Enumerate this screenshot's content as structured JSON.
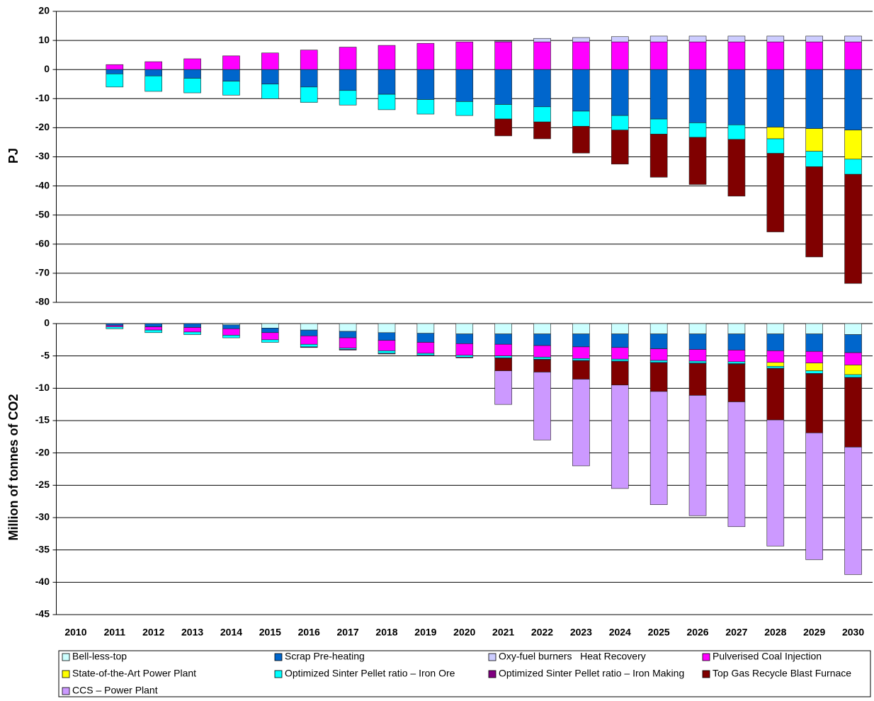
{
  "chart_data": [
    {
      "type": "bar",
      "y_label": "PJ",
      "ylim": [
        -80,
        20
      ],
      "yticks": [
        20,
        10,
        0,
        -10,
        -20,
        -30,
        -40,
        -50,
        -60,
        -70,
        -80
      ],
      "grid": true,
      "series": [
        {
          "color": "#ff00ff",
          "values": [
            null,
            1.7,
            2.7,
            3.7,
            4.7,
            5.7,
            6.7,
            7.7,
            8.3,
            9,
            9.5,
            9.5,
            9.5,
            9.5,
            9.5,
            9.5,
            9.5,
            9.5,
            9.5,
            9.5,
            9.5
          ]
        },
        {
          "color": "#ccccff",
          "values": [
            null,
            null,
            null,
            null,
            null,
            null,
            null,
            null,
            null,
            null,
            null,
            0.3,
            1.2,
            1.5,
            1.8,
            2,
            2,
            2,
            2,
            2,
            2
          ]
        },
        {
          "color": "#0066cc",
          "values": [
            null,
            -1.5,
            -2.2,
            -3,
            -4,
            -5,
            -6,
            -7.2,
            -8.5,
            -10.3,
            -11,
            -12,
            -12.8,
            -14.3,
            -15.8,
            -17,
            -18.3,
            -19,
            -19.8,
            -20.3,
            -20.8
          ]
        },
        {
          "color": "#ffff00",
          "values": [
            null,
            null,
            null,
            null,
            null,
            null,
            null,
            null,
            null,
            null,
            null,
            null,
            null,
            null,
            null,
            null,
            null,
            null,
            -4,
            -7.8,
            -10
          ]
        },
        {
          "color": "#00ffff",
          "values": [
            null,
            -4.5,
            -5.3,
            -5,
            -4.8,
            -5,
            -5.3,
            -5,
            -5.3,
            -5,
            -4.8,
            -5,
            -5.2,
            -5.2,
            -5,
            -5.2,
            -5,
            -5,
            -5,
            -5.3,
            -5.2
          ]
        },
        {
          "color": "#800000",
          "values": [
            null,
            null,
            null,
            null,
            null,
            null,
            null,
            null,
            null,
            null,
            null,
            -5.8,
            -5.8,
            -9.2,
            -11.7,
            -14.8,
            -16.2,
            -19.5,
            -27,
            -31,
            -37.5
          ]
        }
      ]
    },
    {
      "type": "bar",
      "y_label": "Million of tonnes of CO2",
      "ylim": [
        -45,
        0
      ],
      "yticks": [
        0,
        -5,
        -10,
        -15,
        -20,
        -25,
        -30,
        -35,
        -40,
        -45
      ],
      "grid": true,
      "categories": [
        "2010",
        "2011",
        "2012",
        "2013",
        "2014",
        "2015",
        "2016",
        "2017",
        "2018",
        "2019",
        "2020",
        "2021",
        "2022",
        "2023",
        "2024",
        "2025",
        "2026",
        "2027",
        "2028",
        "2029",
        "2030"
      ],
      "series": [
        {
          "name": "Bell-less-top",
          "color": "#ccffff",
          "values": [
            null,
            null,
            null,
            null,
            -0.2,
            -0.7,
            -1,
            -1.2,
            -1.4,
            -1.5,
            -1.6,
            -1.6,
            -1.6,
            -1.6,
            -1.6,
            -1.6,
            -1.6,
            -1.6,
            -1.6,
            -1.6,
            -1.7
          ]
        },
        {
          "name": "Scrap Pre-heating",
          "color": "#0066cc",
          "values": [
            null,
            -0.3,
            -0.5,
            -0.6,
            -0.6,
            -0.7,
            -0.9,
            -1,
            -1.2,
            -1.4,
            -1.5,
            -1.6,
            -1.8,
            -2,
            -2.1,
            -2.3,
            -2.4,
            -2.5,
            -2.6,
            -2.7,
            -2.8
          ]
        },
        {
          "name": "Oxy-fuel burners   Heat Recovery",
          "color": "#ccccff",
          "values": [
            null,
            null,
            null,
            null,
            null,
            null,
            null,
            null,
            null,
            null,
            null,
            null,
            null,
            null,
            null,
            null,
            null,
            null,
            null,
            null,
            null
          ]
        },
        {
          "name": "Pulverised Coal Injection",
          "color": "#ff00ff",
          "values": [
            null,
            -0.2,
            -0.5,
            -0.7,
            -1,
            -1.1,
            -1.3,
            -1.6,
            -1.6,
            -1.7,
            -1.8,
            -1.8,
            -1.8,
            -1.8,
            -1.8,
            -1.8,
            -1.8,
            -1.8,
            -1.8,
            -1.8,
            -1.9
          ]
        },
        {
          "name": "State-of-the-Art Power Plant",
          "color": "#ffff00",
          "values": [
            null,
            null,
            null,
            null,
            null,
            null,
            null,
            null,
            null,
            null,
            null,
            null,
            null,
            null,
            null,
            null,
            null,
            null,
            -0.6,
            -1.2,
            -1.5
          ]
        },
        {
          "name": "Optimized Sinter Pellet ratio – Iron Ore",
          "color": "#00ffff",
          "values": [
            null,
            -0.3,
            -0.4,
            -0.4,
            -0.4,
            -0.4,
            -0.4,
            -0.2,
            -0.4,
            -0.3,
            -0.3,
            -0.3,
            -0.3,
            -0.3,
            -0.3,
            -0.3,
            -0.3,
            -0.3,
            -0.3,
            -0.4,
            -0.4
          ]
        },
        {
          "name": "Optimized Sinter Pellet ratio – Iron Making",
          "color": "#800080",
          "values": [
            null,
            null,
            null,
            null,
            null,
            null,
            -0.1,
            -0.1,
            -0.1,
            -0.1,
            -0.1,
            -0.1,
            -0.1,
            -0.1,
            -0.1,
            -0.1,
            -0.1,
            -0.1,
            -0.1,
            -0.1,
            -0.1
          ]
        },
        {
          "name": "Top Gas Recycle Blast Furnace",
          "color": "#800000",
          "values": [
            null,
            null,
            null,
            null,
            null,
            null,
            null,
            null,
            null,
            null,
            null,
            -1.9,
            -1.9,
            -2.8,
            -3.6,
            -4.4,
            -4.9,
            -5.8,
            -7.9,
            -9.1,
            -10.7
          ]
        },
        {
          "name": "CCS – Power Plant",
          "color": "#cc99ff",
          "values": [
            null,
            null,
            null,
            null,
            null,
            null,
            null,
            null,
            null,
            null,
            null,
            -5.2,
            -10.5,
            -13.4,
            -16,
            -17.5,
            -18.6,
            -19.3,
            -19.5,
            -19.6,
            -19.7
          ]
        }
      ]
    }
  ]
}
